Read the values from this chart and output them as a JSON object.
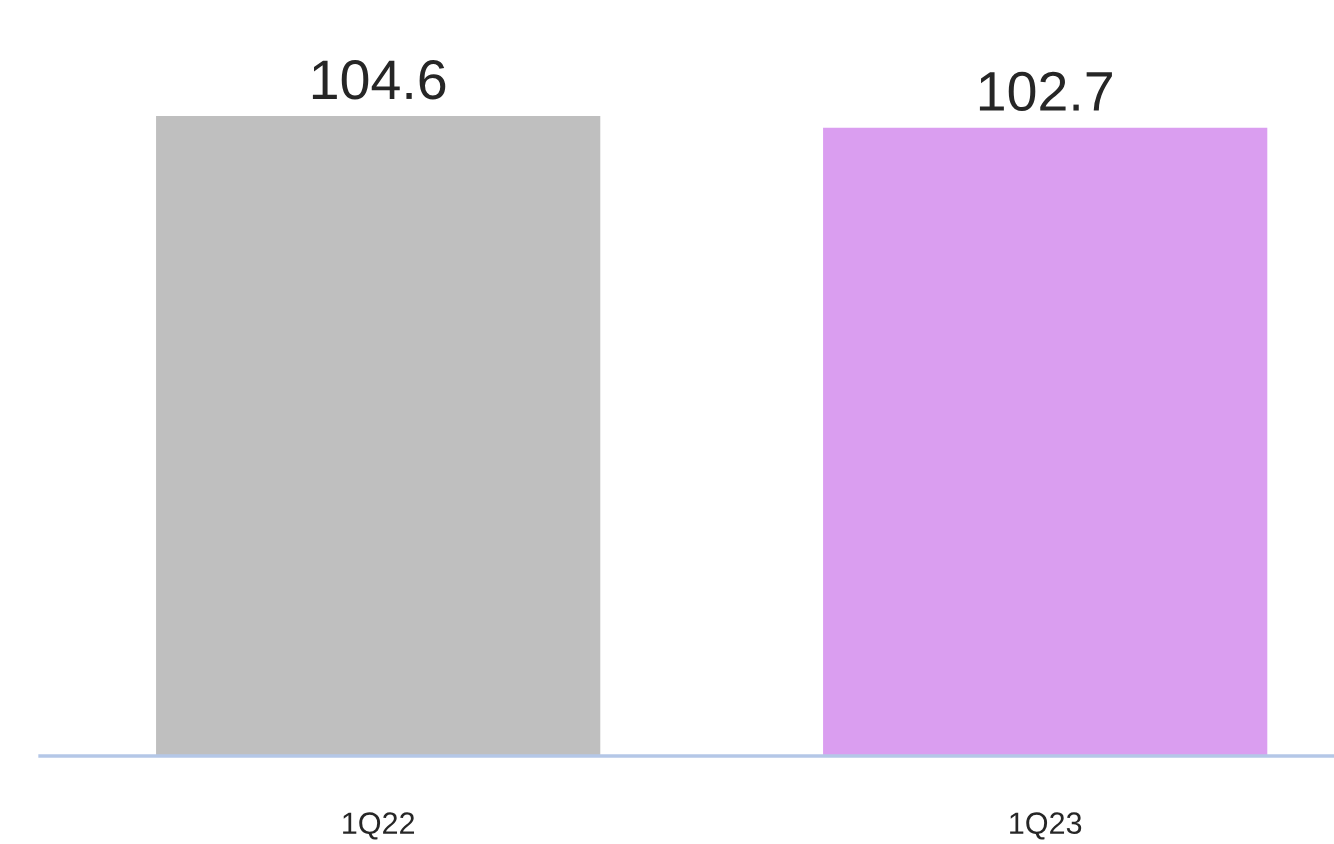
{
  "chart_data": {
    "type": "bar",
    "categories": [
      "1Q22",
      "1Q23"
    ],
    "values": [
      104.6,
      102.7
    ],
    "colors": [
      "#bfbfbf",
      "#da9ef0"
    ],
    "data_labels": true,
    "tick_labels": "x",
    "grid": false,
    "legend": false
  }
}
